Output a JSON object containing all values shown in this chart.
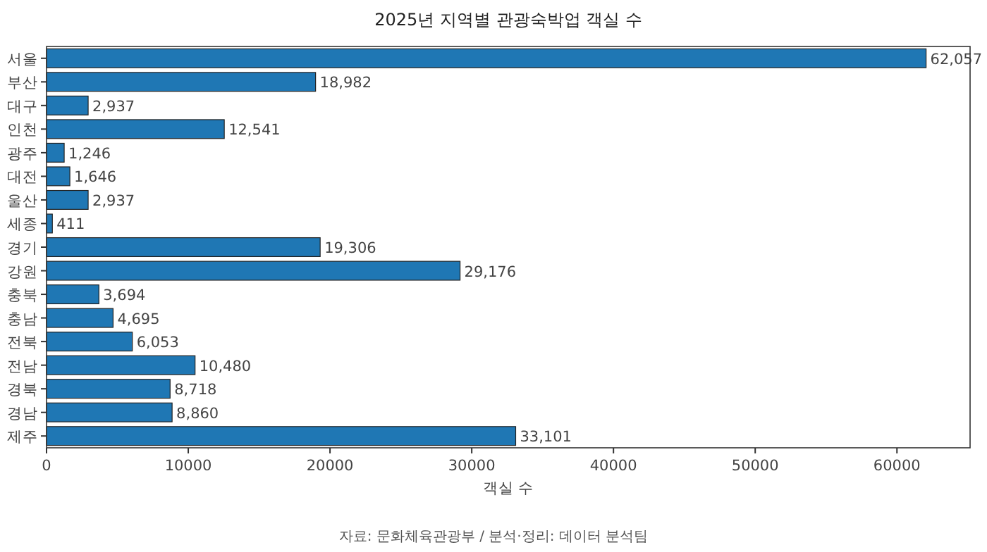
{
  "chart_data": {
    "type": "bar",
    "orientation": "horizontal",
    "title": "2025년 지역별 관광숙박업 객실 수",
    "xlabel": "객실 수",
    "categories": [
      "서울",
      "부산",
      "대구",
      "인천",
      "광주",
      "대전",
      "울산",
      "세종",
      "경기",
      "강원",
      "충북",
      "충남",
      "전북",
      "전남",
      "경북",
      "경남",
      "제주"
    ],
    "values": [
      62057,
      18982,
      2937,
      12541,
      1246,
      1646,
      2937,
      411,
      19306,
      29176,
      3694,
      4695,
      6053,
      10480,
      8718,
      8860,
      33101
    ],
    "value_labels": [
      "62,057",
      "18,982",
      "2,937",
      "12,541",
      "1,246",
      "1,646",
      "2,937",
      "411",
      "19,306",
      "29,176",
      "3,694",
      "4,695",
      "6,053",
      "10,480",
      "8,718",
      "8,860",
      "33,101"
    ],
    "color": "#1f77b4",
    "xlim": [
      0,
      65160
    ],
    "xticks": [
      0,
      10000,
      20000,
      30000,
      40000,
      50000,
      60000
    ],
    "annotations": [
      "자료: 문화체육관광부 / 분석·정리: 데이터 분석팀"
    ]
  }
}
